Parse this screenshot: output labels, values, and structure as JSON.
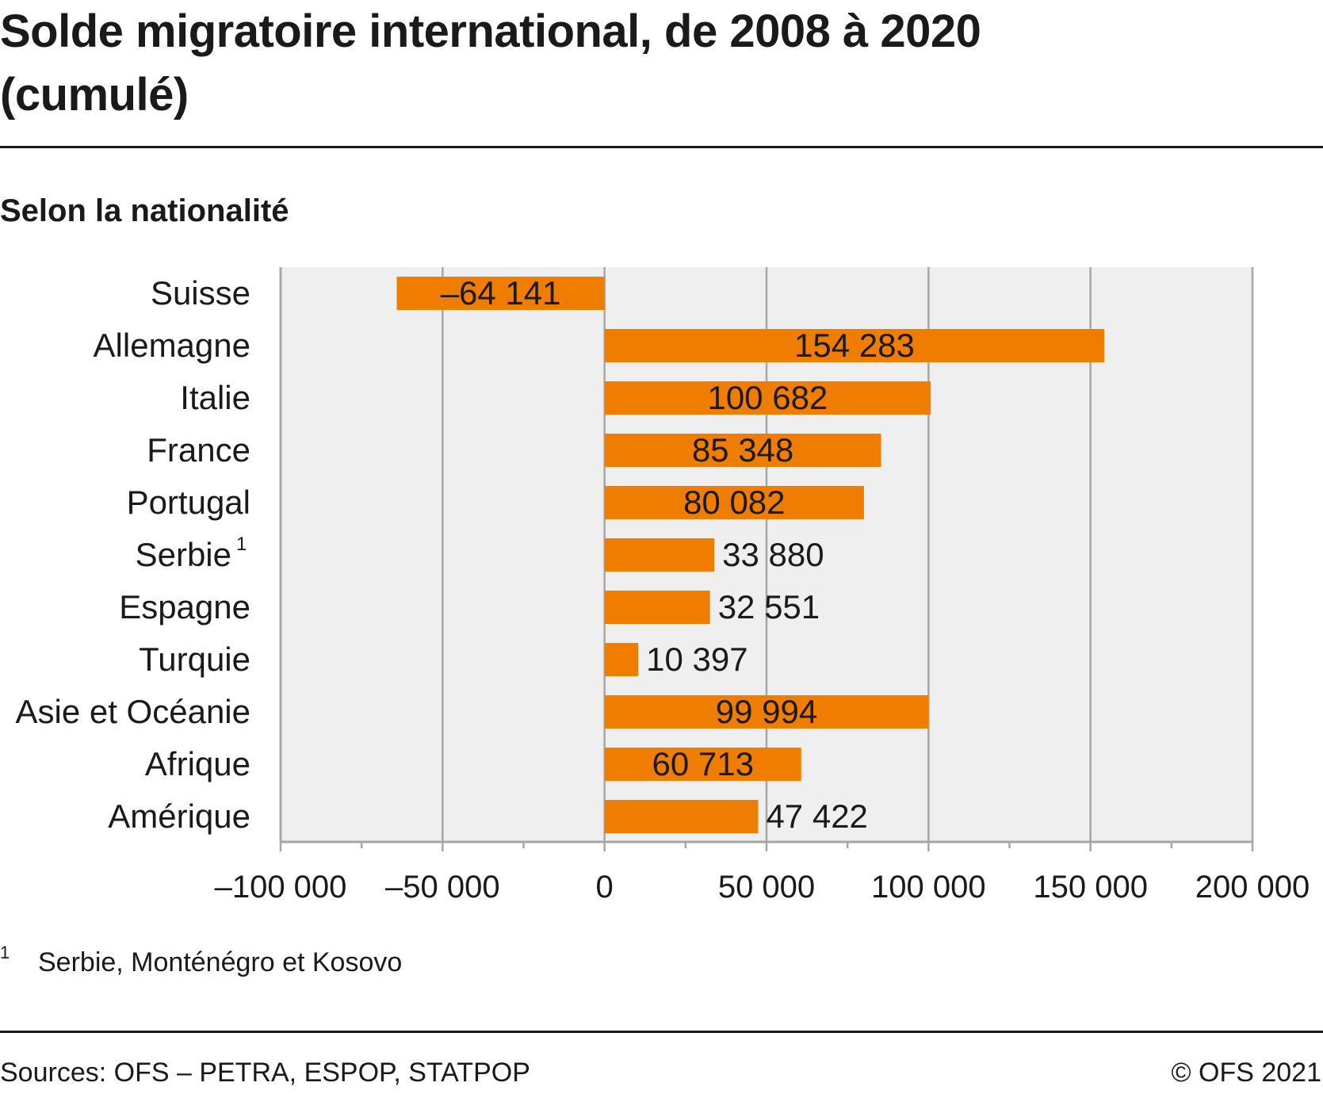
{
  "title": "Solde migratoire international, de 2008 à 2020 (cumulé)",
  "subtitle": "Selon la nationalité",
  "footnote": {
    "marker": "1",
    "text": "Serbie, Monténégro et Kosovo"
  },
  "source": "Sources: OFS – PETRA, ESPOP, STATPOP",
  "copyright": "© OFS 2021",
  "colors": {
    "bar": "#ef7d00",
    "plot_bg": "#efefef",
    "grid": "#a6a6a6",
    "axis": "#a6a6a6"
  },
  "chart_data": {
    "type": "bar",
    "orientation": "horizontal",
    "categories": [
      "Suisse",
      "Allemagne",
      "Italie",
      "France",
      "Portugal",
      "Serbie",
      "Espagne",
      "Turquie",
      "Asie et Océanie",
      "Afrique",
      "Amérique"
    ],
    "category_markers": [
      "",
      "",
      "",
      "",
      "",
      "1",
      "",
      "",
      "",
      "",
      ""
    ],
    "values": [
      -64141,
      154283,
      100682,
      85348,
      80082,
      33880,
      32551,
      10397,
      99994,
      60713,
      47422
    ],
    "value_labels": [
      "–64 141",
      "154 283",
      "100 682",
      "85 348",
      "80 082",
      "33 880",
      "32 551",
      "10 397",
      "99 994",
      "60 713",
      "47 422"
    ],
    "xlim": [
      -100000,
      200000
    ],
    "xticks": [
      -100000,
      -50000,
      0,
      50000,
      100000,
      150000,
      200000
    ],
    "xtick_labels": [
      "–100 000",
      "–50 000",
      "0",
      "50 000",
      "100 000",
      "150 000",
      "200 000"
    ],
    "grid": true,
    "legend": "none"
  }
}
